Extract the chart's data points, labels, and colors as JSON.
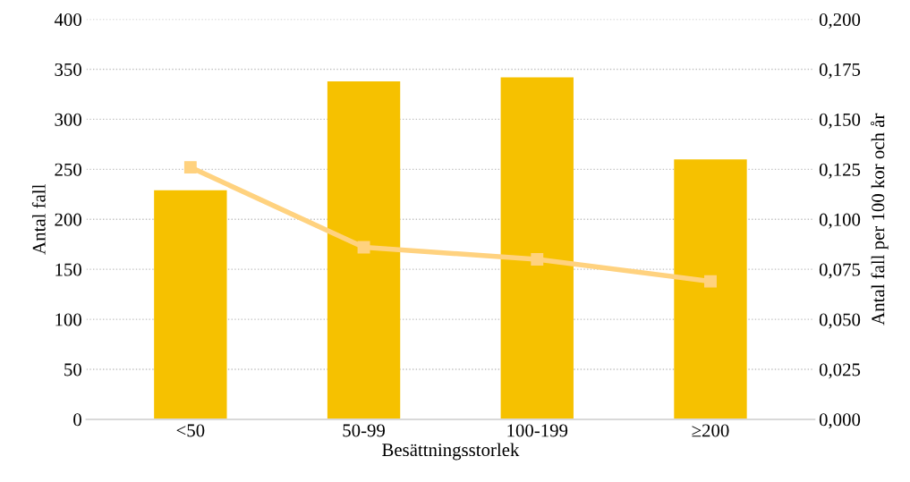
{
  "chart_data": {
    "type": "bar",
    "xlabel": "Besättningsstorlek",
    "ylabel": "Antal fall",
    "y2label": "Antal fall per 100 kor och år",
    "categories": [
      "<50",
      "50-99",
      "100-199",
      "≥200"
    ],
    "series": [
      {
        "color": "#f6c100",
        "values": [
          229,
          338,
          342,
          260
        ]
      },
      {
        "type": "line",
        "axis": "y2",
        "color": "#ffd27f",
        "marker": "square",
        "line_style": "solid",
        "values": [
          0.126,
          0.086,
          0.08,
          0.069
        ]
      }
    ],
    "ylim": [
      0,
      400
    ],
    "yticks": [
      0,
      50,
      100,
      150,
      200,
      250,
      300,
      350,
      400
    ],
    "y2lim": [
      0,
      0.2
    ],
    "y2ticks": [
      {
        "value": 0,
        "label": "0,000"
      },
      {
        "value": 0.025,
        "label": "0,025"
      },
      {
        "value": 0.05,
        "label": "0,050"
      },
      {
        "value": 0.075,
        "label": "0,075"
      },
      {
        "value": 0.1,
        "label": "0,100"
      },
      {
        "value": 0.125,
        "label": "0,125"
      },
      {
        "value": 0.15,
        "label": "0,150"
      },
      {
        "value": 0.175,
        "label": "0,175"
      },
      {
        "value": 0.2,
        "label": "0,200"
      }
    ],
    "grid": "y"
  }
}
